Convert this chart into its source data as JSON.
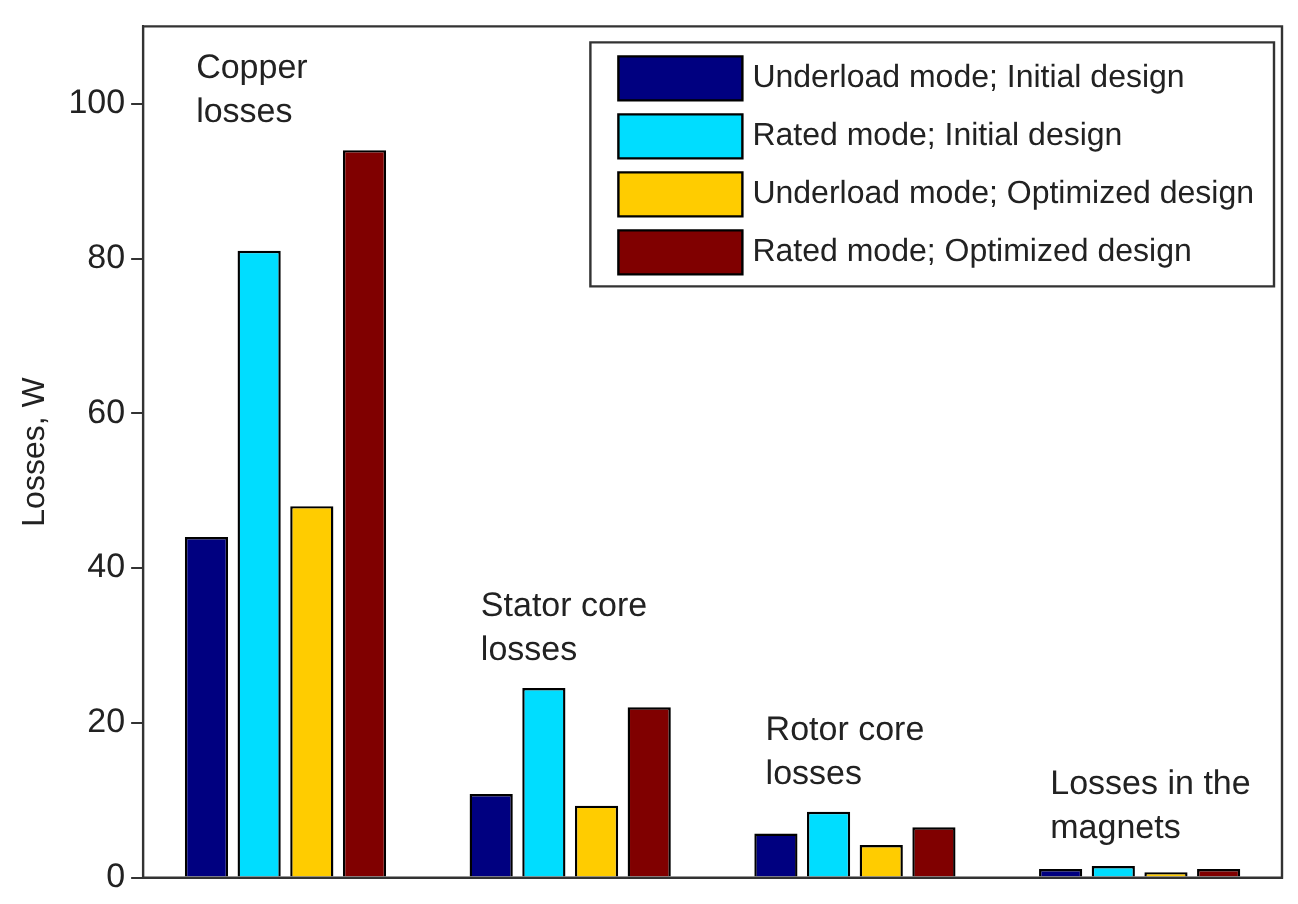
{
  "chart_data": {
    "type": "bar",
    "ylabel": "Losses, W",
    "categories": [
      null,
      null,
      null,
      null
    ],
    "series": [
      {
        "name": "Underload mode; Initial design",
        "color": "#000080",
        "values": [
          44,
          10.8,
          5.7,
          1.1
        ]
      },
      {
        "name": "Rated mode; Initial design",
        "color": "#00ddff",
        "values": [
          81,
          24.5,
          8.5,
          1.5
        ]
      },
      {
        "name": "Underload mode; Optimized design",
        "color": "#ffcc00",
        "values": [
          48,
          9.3,
          4.2,
          0.7
        ]
      },
      {
        "name": "Rated mode; Optimized design",
        "color": "#800000",
        "values": [
          94,
          22,
          6.5,
          1.1
        ]
      }
    ],
    "annotations": [
      "Copper\nlosses",
      "Stator core\nlosses",
      "Rotor core\nlosses",
      "Losses in the\nmagnets"
    ],
    "ylim": [
      0,
      110
    ],
    "yticks": [
      0,
      20,
      40,
      60,
      80,
      100
    ],
    "grid": false,
    "legend": "top right"
  }
}
